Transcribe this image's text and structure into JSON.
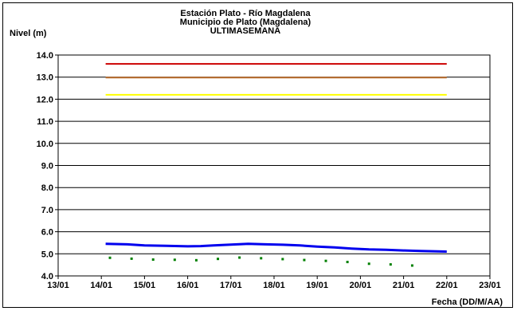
{
  "chart_data": {
    "type": "line",
    "title_lines": [
      "Estación Plato - Río Magdalena",
      "Municipio de Plato (Magdalena)",
      "ULTIMASEMANA"
    ],
    "ylabel": "Nivel (m)",
    "xlabel": "Fecha (DD/M/AA)",
    "ylim": [
      4.0,
      14.0
    ],
    "xlim": [
      13,
      23
    ],
    "grid": true,
    "y_ticks": [
      "4.0",
      "5.0",
      "6.0",
      "7.0",
      "8.0",
      "9.0",
      "10.0",
      "11.0",
      "12.0",
      "13.0",
      "14.0"
    ],
    "x_ticks": [
      "13/01",
      "14/01",
      "15/01",
      "16/01",
      "17/01",
      "18/01",
      "19/01",
      "20/01",
      "21/01",
      "22/01",
      "23/01"
    ],
    "thresholds": [
      {
        "value": 13.6,
        "x_start": 14.1,
        "x_end": 22.0,
        "color": "#cc0000"
      },
      {
        "value": 12.98,
        "x_start": 14.1,
        "x_end": 22.0,
        "color": "#b86b2a"
      },
      {
        "value": 12.2,
        "x_start": 14.1,
        "x_end": 22.0,
        "color": "#ffff00"
      }
    ],
    "series": [
      {
        "style": "line",
        "color": "#0000ee",
        "x": [
          14.1,
          14.6,
          15.0,
          15.5,
          16.0,
          16.3,
          16.6,
          17.0,
          17.4,
          17.8,
          18.2,
          18.6,
          19.0,
          19.4,
          19.8,
          20.2,
          20.6,
          21.0,
          21.4,
          21.8,
          22.0
        ],
        "y": [
          5.45,
          5.43,
          5.38,
          5.36,
          5.34,
          5.35,
          5.38,
          5.42,
          5.45,
          5.43,
          5.41,
          5.38,
          5.33,
          5.29,
          5.24,
          5.2,
          5.18,
          5.15,
          5.13,
          5.11,
          5.1
        ]
      },
      {
        "style": "dots",
        "color": "#008000",
        "x": [
          14.2,
          14.7,
          15.2,
          15.7,
          16.2,
          16.7,
          17.2,
          17.7,
          18.2,
          18.7,
          19.2,
          19.7,
          20.2,
          20.7,
          21.2
        ],
        "y": [
          4.82,
          4.78,
          4.74,
          4.73,
          4.71,
          4.77,
          4.83,
          4.8,
          4.76,
          4.72,
          4.68,
          4.63,
          4.55,
          4.52,
          4.47
        ]
      }
    ]
  }
}
